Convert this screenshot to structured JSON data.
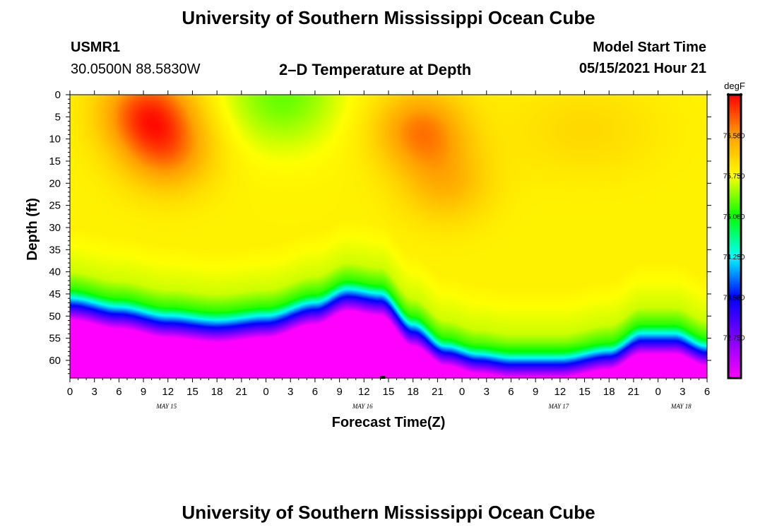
{
  "page": {
    "title_top": "University of Southern Mississippi Ocean Cube",
    "title_bottom": "University of Southern Mississippi Ocean Cube",
    "station_id": "USMR1",
    "station_coords": "30.0500N  88.5830W",
    "plot_title": "2–D Temperature at Depth",
    "model_start_label": "Model Start Time",
    "model_start_value": "05/15/2021 Hour 21"
  },
  "chart_data": {
    "type": "heatmap",
    "title": "2–D Temperature at Depth",
    "xlabel": "Forecast Time(Z)",
    "ylabel": "Depth (ft)",
    "x_unit": "hours (Z) from May 15 00Z",
    "xlim": [
      0,
      78
    ],
    "ylim": [
      0,
      64
    ],
    "y_ticks": [
      0,
      5,
      10,
      15,
      20,
      25,
      30,
      35,
      40,
      45,
      50,
      55,
      60
    ],
    "x_tick_labels": [
      "0",
      "3",
      "6",
      "9",
      "12",
      "15",
      "18",
      "21",
      "0",
      "3",
      "6",
      "9",
      "12",
      "15",
      "18",
      "21",
      "0",
      "3",
      "6",
      "9",
      "12",
      "15",
      "18",
      "21",
      "0",
      "3",
      "6"
    ],
    "date_labels": [
      {
        "text": "MAY 15",
        "x": 12
      },
      {
        "text": "MAY 16",
        "x": 36
      },
      {
        "text": "MAY 17",
        "x": 60
      },
      {
        "text": "MAY 18",
        "x": 75
      }
    ],
    "colorbar": {
      "label": "degF",
      "range": [
        72.0,
        77.25
      ],
      "ticks": [
        "76.500",
        "75.750",
        "75.000",
        "74.250",
        "73.500",
        "72.750"
      ],
      "colors": [
        "#ff00ff",
        "#8000ff",
        "#0000ff",
        "#00ffff",
        "#00ff00",
        "#ffff00",
        "#ffa000",
        "#ff0000"
      ]
    },
    "thermocline_depth": {
      "x": [
        0,
        6,
        12,
        18,
        24,
        30,
        34,
        38,
        42,
        46,
        50,
        54,
        60,
        66,
        70,
        74,
        78
      ],
      "depth": [
        44,
        46,
        48,
        49,
        48,
        45,
        42,
        43,
        50,
        55,
        57,
        58,
        58,
        56,
        52,
        52,
        55
      ]
    },
    "surface_hotspots": [
      {
        "x": 9.5,
        "depth": 4,
        "temp": 77.1
      },
      {
        "x": 12,
        "depth": 13,
        "temp": 76.7
      },
      {
        "x": 43,
        "depth": 8,
        "temp": 76.8
      },
      {
        "x": 46,
        "depth": 20,
        "temp": 76.4
      }
    ]
  }
}
